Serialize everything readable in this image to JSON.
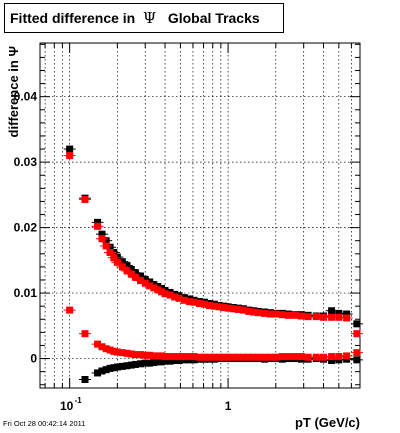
{
  "chart_data": {
    "type": "scatter",
    "title": {
      "prefix": "Fitted difference in",
      "symbol": "Ψ",
      "suffix": "Global Tracks"
    },
    "xlabel": "pT (GeV/c)",
    "ylabel": "difference in Ψ",
    "x_scale": "log",
    "xlim": [
      0.065,
      6.8
    ],
    "ylim": [
      -0.0045,
      0.0482
    ],
    "grid": true,
    "legend": "none",
    "x_ticks": [
      {
        "value": 0.1,
        "base": "10",
        "exp": "-1"
      },
      {
        "value": 1,
        "label": "1"
      }
    ],
    "y_ticks": [
      {
        "value": 0,
        "label": "0"
      },
      {
        "value": 0.01,
        "label": "0.01"
      },
      {
        "value": 0.02,
        "label": "0.02"
      },
      {
        "value": 0.03,
        "label": "0.03"
      },
      {
        "value": 0.04,
        "label": "0.04"
      }
    ],
    "series": [
      {
        "color": "#000000",
        "marker": "square",
        "points": [
          [
            0.1,
            0.032
          ],
          [
            0.125,
            0.0245
          ],
          [
            0.15,
            0.0208
          ],
          [
            0.16,
            0.019
          ],
          [
            0.17,
            0.018
          ],
          [
            0.18,
            0.017
          ],
          [
            0.19,
            0.0162
          ],
          [
            0.2,
            0.0155
          ],
          [
            0.215,
            0.0148
          ],
          [
            0.23,
            0.0142
          ],
          [
            0.245,
            0.0136
          ],
          [
            0.26,
            0.0131
          ],
          [
            0.28,
            0.0126
          ],
          [
            0.3,
            0.0121
          ],
          [
            0.32,
            0.0117
          ],
          [
            0.34,
            0.0113
          ],
          [
            0.36,
            0.011
          ],
          [
            0.38,
            0.0107
          ],
          [
            0.4,
            0.0104
          ],
          [
            0.43,
            0.0101
          ],
          [
            0.46,
            0.0098
          ],
          [
            0.49,
            0.0096
          ],
          [
            0.53,
            0.0093
          ],
          [
            0.57,
            0.0091
          ],
          [
            0.61,
            0.0089
          ],
          [
            0.66,
            0.0087
          ],
          [
            0.71,
            0.0086
          ],
          [
            0.76,
            0.0084
          ],
          [
            0.82,
            0.0083
          ],
          [
            0.88,
            0.0081
          ],
          [
            0.94,
            0.008
          ],
          [
            1.0,
            0.0079
          ],
          [
            1.08,
            0.0078
          ],
          [
            1.16,
            0.0077
          ],
          [
            1.25,
            0.0076
          ],
          [
            1.35,
            0.0074
          ],
          [
            1.45,
            0.0073
          ],
          [
            1.55,
            0.0072
          ],
          [
            1.7,
            0.0071
          ],
          [
            1.85,
            0.007
          ],
          [
            2.0,
            0.0069
          ],
          [
            2.2,
            0.0069
          ],
          [
            2.4,
            0.0068
          ],
          [
            2.65,
            0.0067
          ],
          [
            2.9,
            0.0067
          ],
          [
            3.2,
            0.0066
          ],
          [
            3.6,
            0.0065
          ],
          [
            4.0,
            0.0065
          ],
          [
            4.5,
            0.0073
          ],
          [
            5.0,
            0.0069
          ],
          [
            5.6,
            0.0068
          ],
          [
            6.5,
            0.0053
          ],
          [
            0.125,
            -0.0032
          ],
          [
            0.15,
            -0.0022
          ],
          [
            0.16,
            -0.0019
          ],
          [
            0.17,
            -0.0017
          ],
          [
            0.18,
            -0.0015
          ],
          [
            0.19,
            -0.0014
          ],
          [
            0.2,
            -0.0013
          ],
          [
            0.215,
            -0.0012
          ],
          [
            0.23,
            -0.0011
          ],
          [
            0.245,
            -0.001
          ],
          [
            0.26,
            -0.0009
          ],
          [
            0.28,
            -0.0008
          ],
          [
            0.3,
            -0.0007
          ],
          [
            0.32,
            -0.0007
          ],
          [
            0.34,
            -0.0006
          ],
          [
            0.36,
            -0.0005
          ],
          [
            0.38,
            -0.0005
          ],
          [
            0.4,
            -0.0004
          ],
          [
            0.43,
            -0.0004
          ],
          [
            0.46,
            -0.0003
          ],
          [
            0.49,
            -0.0003
          ],
          [
            0.53,
            -0.0002
          ],
          [
            0.57,
            -0.0002
          ],
          [
            0.61,
            -0.0002
          ],
          [
            0.66,
            -0.0001
          ],
          [
            0.71,
            -0.0001
          ],
          [
            0.76,
            -0.0001
          ],
          [
            0.82,
            -0.0001
          ],
          [
            0.88,
            0.0
          ],
          [
            0.94,
            0.0
          ],
          [
            1.0,
            0.0
          ],
          [
            1.08,
            0.0
          ],
          [
            1.16,
            0.0
          ],
          [
            1.25,
            0.0
          ],
          [
            1.35,
            0.0
          ],
          [
            1.45,
            0.0
          ],
          [
            1.55,
            0.0
          ],
          [
            1.7,
            -0.0001
          ],
          [
            1.85,
            0.0
          ],
          [
            2.0,
            0.0
          ],
          [
            2.2,
            -0.0001
          ],
          [
            2.4,
            0.0
          ],
          [
            2.65,
            0.0
          ],
          [
            2.9,
            -0.0001
          ],
          [
            3.2,
            -0.0001
          ],
          [
            3.6,
            0.0
          ],
          [
            4.0,
            -0.0001
          ],
          [
            4.5,
            -0.0003
          ],
          [
            5.0,
            -0.0002
          ],
          [
            5.6,
            -0.0001
          ],
          [
            6.5,
            -0.0002
          ]
        ]
      },
      {
        "color": "#ff0000",
        "marker": "square",
        "points": [
          [
            0.1,
            0.031
          ],
          [
            0.125,
            0.0243
          ],
          [
            0.15,
            0.0202
          ],
          [
            0.16,
            0.0183
          ],
          [
            0.17,
            0.0172
          ],
          [
            0.18,
            0.0162
          ],
          [
            0.19,
            0.0154
          ],
          [
            0.2,
            0.0147
          ],
          [
            0.215,
            0.014
          ],
          [
            0.23,
            0.0134
          ],
          [
            0.245,
            0.0129
          ],
          [
            0.26,
            0.0124
          ],
          [
            0.28,
            0.0119
          ],
          [
            0.3,
            0.0115
          ],
          [
            0.32,
            0.0111
          ],
          [
            0.34,
            0.0108
          ],
          [
            0.36,
            0.0105
          ],
          [
            0.38,
            0.0102
          ],
          [
            0.4,
            0.0099
          ],
          [
            0.43,
            0.0097
          ],
          [
            0.46,
            0.0094
          ],
          [
            0.49,
            0.0092
          ],
          [
            0.53,
            0.0089
          ],
          [
            0.57,
            0.0087
          ],
          [
            0.61,
            0.0086
          ],
          [
            0.66,
            0.0084
          ],
          [
            0.71,
            0.0083
          ],
          [
            0.76,
            0.0081
          ],
          [
            0.82,
            0.008
          ],
          [
            0.88,
            0.0079
          ],
          [
            0.94,
            0.0078
          ],
          [
            1.0,
            0.0077
          ],
          [
            1.08,
            0.0076
          ],
          [
            1.16,
            0.0075
          ],
          [
            1.25,
            0.0074
          ],
          [
            1.35,
            0.0072
          ],
          [
            1.45,
            0.0071
          ],
          [
            1.55,
            0.007
          ],
          [
            1.7,
            0.0069
          ],
          [
            1.85,
            0.0068
          ],
          [
            2.0,
            0.0068
          ],
          [
            2.2,
            0.0067
          ],
          [
            2.4,
            0.0066
          ],
          [
            2.65,
            0.0066
          ],
          [
            2.9,
            0.0065
          ],
          [
            3.2,
            0.0064
          ],
          [
            3.6,
            0.0064
          ],
          [
            4.0,
            0.0063
          ],
          [
            4.5,
            0.0063
          ],
          [
            5.0,
            0.0063
          ],
          [
            5.6,
            0.0062
          ],
          [
            6.5,
            0.0038
          ],
          [
            0.1,
            0.0074
          ],
          [
            0.125,
            0.0038
          ],
          [
            0.15,
            0.0022
          ],
          [
            0.16,
            0.0018
          ],
          [
            0.17,
            0.0015
          ],
          [
            0.18,
            0.0013
          ],
          [
            0.19,
            0.0011
          ],
          [
            0.2,
            0.001
          ],
          [
            0.215,
            0.0009
          ],
          [
            0.23,
            0.0008
          ],
          [
            0.245,
            0.0007
          ],
          [
            0.26,
            0.0006
          ],
          [
            0.28,
            0.0006
          ],
          [
            0.3,
            0.0005
          ],
          [
            0.32,
            0.0005
          ],
          [
            0.34,
            0.0004
          ],
          [
            0.36,
            0.0004
          ],
          [
            0.38,
            0.0004
          ],
          [
            0.4,
            0.0003
          ],
          [
            0.43,
            0.0003
          ],
          [
            0.46,
            0.0003
          ],
          [
            0.49,
            0.0003
          ],
          [
            0.53,
            0.0003
          ],
          [
            0.57,
            0.0003
          ],
          [
            0.61,
            0.0003
          ],
          [
            0.66,
            0.0002
          ],
          [
            0.71,
            0.0002
          ],
          [
            0.76,
            0.0002
          ],
          [
            0.82,
            0.0002
          ],
          [
            0.88,
            0.0002
          ],
          [
            0.94,
            0.0002
          ],
          [
            1.0,
            0.0002
          ],
          [
            1.08,
            0.0002
          ],
          [
            1.16,
            0.0002
          ],
          [
            1.25,
            0.0002
          ],
          [
            1.35,
            0.0002
          ],
          [
            1.45,
            0.0002
          ],
          [
            1.55,
            0.0002
          ],
          [
            1.7,
            0.0002
          ],
          [
            1.85,
            0.0002
          ],
          [
            2.0,
            0.0002
          ],
          [
            2.2,
            0.0003
          ],
          [
            2.4,
            0.0003
          ],
          [
            2.65,
            0.0003
          ],
          [
            2.9,
            0.0003
          ],
          [
            3.2,
            0.0002
          ],
          [
            3.6,
            0.0002
          ],
          [
            4.0,
            0.0002
          ],
          [
            4.5,
            0.0003
          ],
          [
            5.0,
            0.0003
          ],
          [
            5.6,
            0.0004
          ],
          [
            6.5,
            0.0009
          ]
        ]
      }
    ]
  },
  "footer": "Fri Oct 28 00:42:14 2011"
}
